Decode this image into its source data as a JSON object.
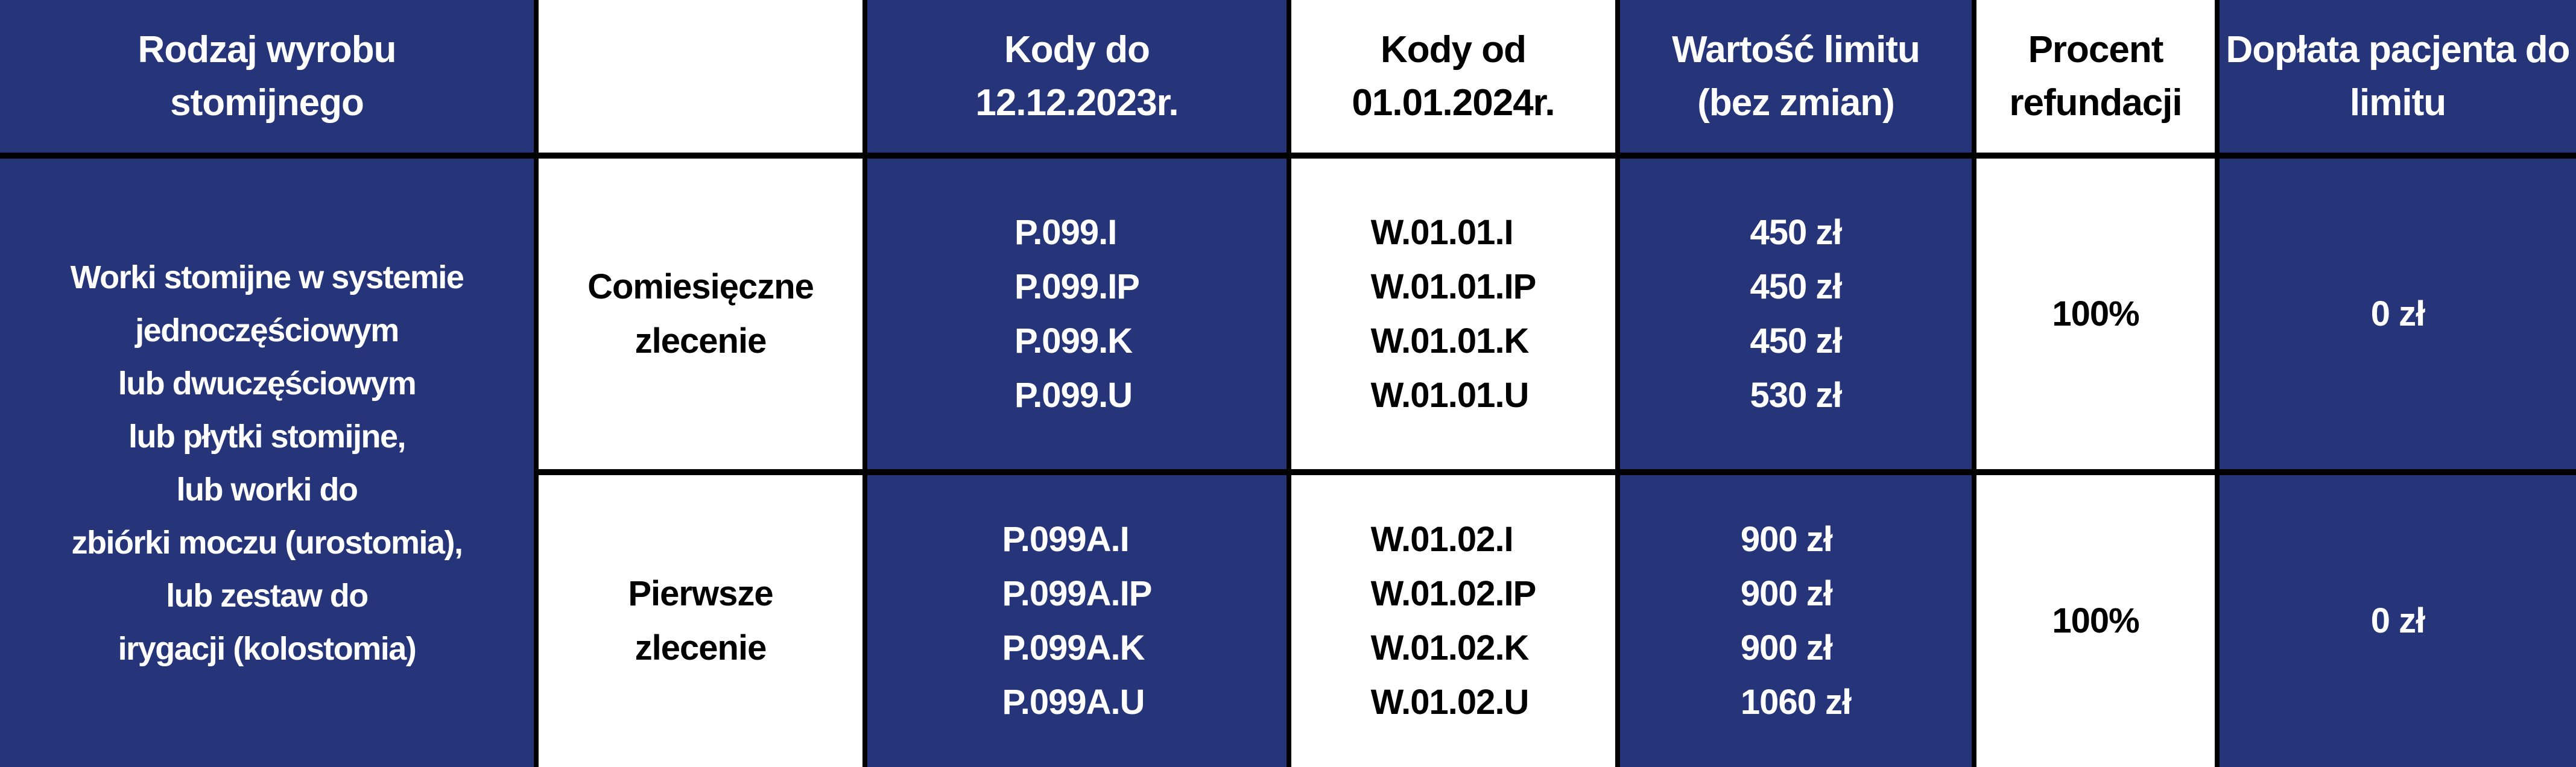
{
  "headers": {
    "product_type": "Rodzaj wyrobu stomijnego",
    "blank": "",
    "codes_until": "Kody do 12.12.2023r.",
    "codes_from": "Kody od 01.01.2024r.",
    "limit_value": "Wartość limitu (bez zmian)",
    "refund_percent": "Procent refundacji",
    "patient_copay": "Dopłata pacjenta do limitu"
  },
  "product_description": "Worki stomijne w systemie\njednoczęściowym\nlub dwuczęściowym\nlub płytki stomijne,\nlub worki do\nzbiórki moczu (urostomia),\nlub zestaw do\nirygacji (kolostomia)",
  "rows": [
    {
      "order_type": "Comiesięczne zlecenie",
      "codes_until": [
        "P.099.I",
        "P.099.IP",
        "P.099.K",
        "P.099.U"
      ],
      "codes_from": [
        "W.01.01.I",
        "W.01.01.IP",
        "W.01.01.K",
        "W.01.01.U"
      ],
      "limits": [
        "450 zł",
        "450 zł",
        "450 zł",
        "530 zł"
      ],
      "refund_percent": "100%",
      "patient_copay": "0 zł"
    },
    {
      "order_type": "Pierwsze zlecenie",
      "codes_until": [
        "P.099A.I",
        "P.099A.IP",
        "P.099A.K",
        "P.099A.U"
      ],
      "codes_from": [
        "W.01.02.I",
        "W.01.02.IP",
        "W.01.02.K",
        "W.01.02.U"
      ],
      "limits": [
        "900 zł",
        "900 zł",
        "900 zł",
        "1060 zł"
      ],
      "refund_percent": "100%",
      "patient_copay": "0 zł"
    }
  ],
  "colors": {
    "navy": "#263579",
    "border": "#000000",
    "white": "#ffffff"
  }
}
